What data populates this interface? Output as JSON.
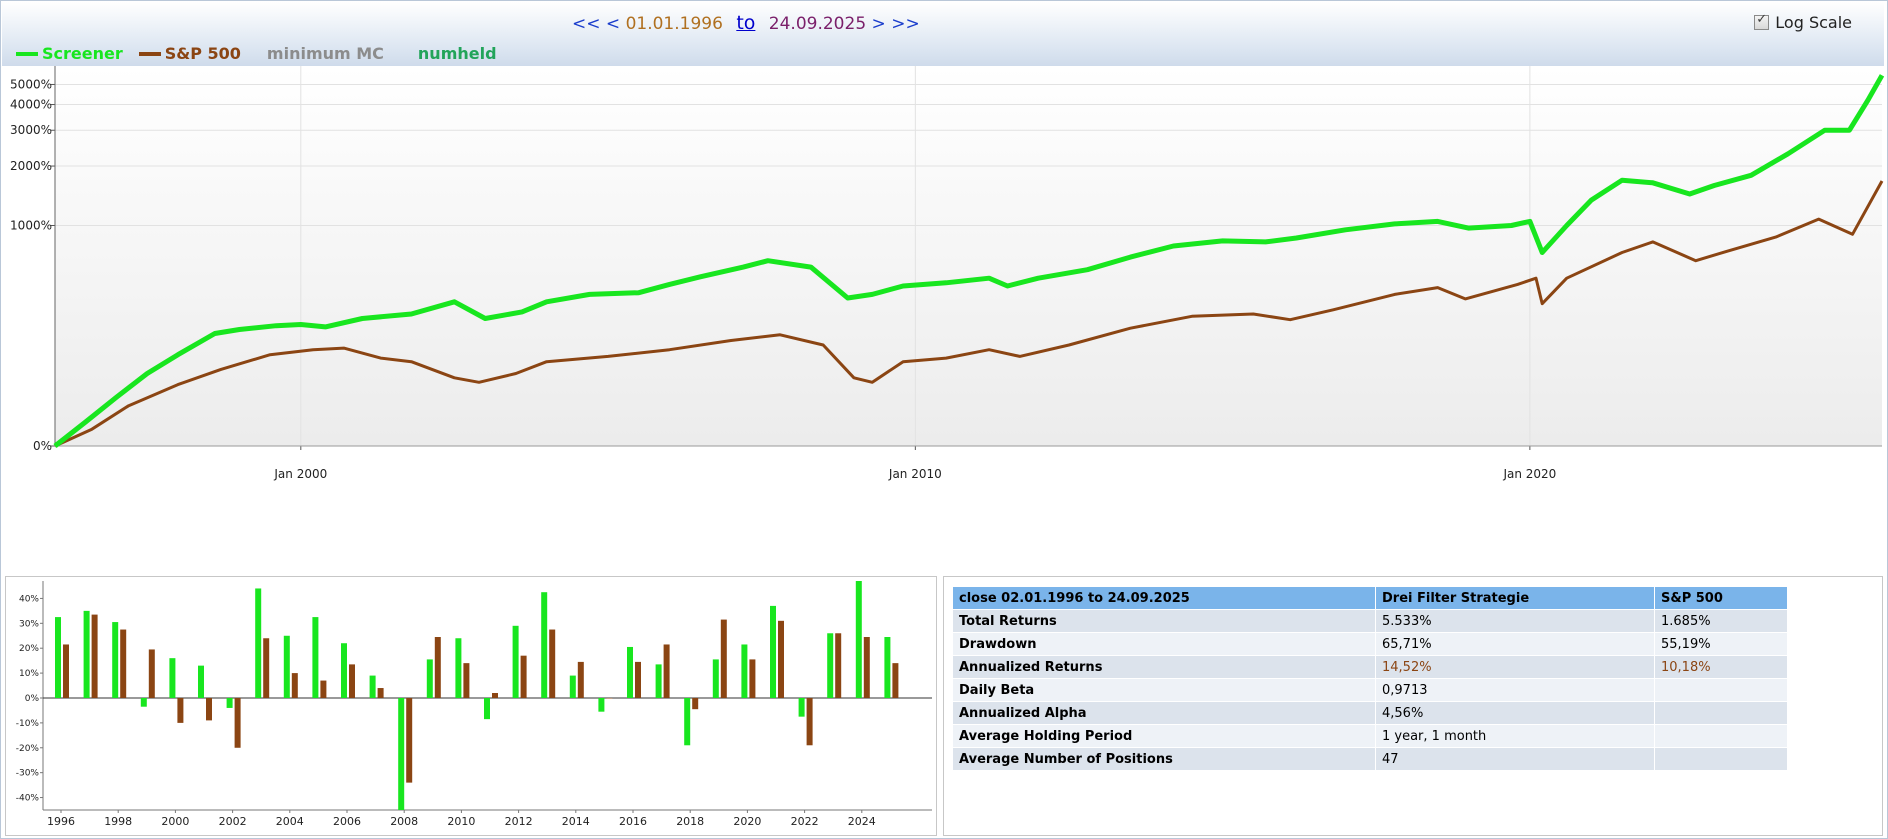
{
  "header": {
    "nav_first": "<<",
    "nav_prev": "<",
    "start_date": "01.01.1996",
    "to_label": "to",
    "end_date": "24.09.2025",
    "nav_next": ">",
    "nav_last": ">>",
    "log_scale_label": "Log Scale",
    "log_scale_checked": true
  },
  "legend": [
    {
      "label": "Screener",
      "color": "#18e61f",
      "swatch": true
    },
    {
      "label": "S&P 500",
      "color": "#8b4513",
      "swatch": true
    },
    {
      "label": "minimum MC",
      "color": "#8c8c8c",
      "swatch": false
    },
    {
      "label": "numheld",
      "color": "#22a45a",
      "swatch": false
    }
  ],
  "chart_data": [
    {
      "type": "line",
      "title": "",
      "xlabel": "",
      "ylabel": "",
      "log_scale": true,
      "x_range": [
        1996.0,
        2025.73
      ],
      "x_ticks": [
        2000,
        2010,
        2020
      ],
      "x_tick_labels": [
        "Jan 2000",
        "Jan 2010",
        "Jan 2020"
      ],
      "y_ticks": [
        0,
        1000,
        2000,
        3000,
        4000,
        5000
      ],
      "y_tick_labels": [
        "0%",
        "1000%",
        "2000%",
        "3000%",
        "4000%",
        "5000%"
      ],
      "ylim": [
        0,
        6000
      ],
      "grid": true,
      "legend_position": "top-left",
      "series": [
        {
          "name": "Screener",
          "color": "#18e61f",
          "points": [
            [
              1996.0,
              0
            ],
            [
              1996.5,
              30
            ],
            [
              1997.0,
              70
            ],
            [
              1997.5,
              120
            ],
            [
              1998.0,
              170
            ],
            [
              1998.6,
              240
            ],
            [
              1999.0,
              255
            ],
            [
              1999.6,
              270
            ],
            [
              2000.0,
              275
            ],
            [
              2000.4,
              265
            ],
            [
              2001.0,
              300
            ],
            [
              2001.8,
              320
            ],
            [
              2002.5,
              380
            ],
            [
              2003.0,
              300
            ],
            [
              2003.6,
              330
            ],
            [
              2004.0,
              380
            ],
            [
              2004.7,
              420
            ],
            [
              2005.5,
              430
            ],
            [
              2006.0,
              480
            ],
            [
              2006.5,
              530
            ],
            [
              2007.2,
              600
            ],
            [
              2007.6,
              650
            ],
            [
              2008.3,
              600
            ],
            [
              2008.9,
              400
            ],
            [
              2009.3,
              420
            ],
            [
              2009.8,
              470
            ],
            [
              2010.5,
              490
            ],
            [
              2011.2,
              520
            ],
            [
              2011.5,
              470
            ],
            [
              2012.0,
              520
            ],
            [
              2012.8,
              580
            ],
            [
              2013.5,
              680
            ],
            [
              2014.2,
              780
            ],
            [
              2015.0,
              830
            ],
            [
              2015.7,
              820
            ],
            [
              2016.2,
              860
            ],
            [
              2017.0,
              950
            ],
            [
              2017.8,
              1020
            ],
            [
              2018.5,
              1050
            ],
            [
              2019.0,
              970
            ],
            [
              2019.7,
              1000
            ],
            [
              2020.0,
              1050
            ],
            [
              2020.2,
              720
            ],
            [
              2020.6,
              1000
            ],
            [
              2021.0,
              1350
            ],
            [
              2021.5,
              1700
            ],
            [
              2022.0,
              1650
            ],
            [
              2022.6,
              1450
            ],
            [
              2023.0,
              1600
            ],
            [
              2023.6,
              1800
            ],
            [
              2024.2,
              2300
            ],
            [
              2024.8,
              3000
            ],
            [
              2025.2,
              3000
            ],
            [
              2025.5,
              4200
            ],
            [
              2025.73,
              5533
            ]
          ]
        },
        {
          "name": "S&P 500",
          "color": "#8b4513",
          "points": [
            [
              1996.0,
              0
            ],
            [
              1996.6,
              20
            ],
            [
              1997.2,
              55
            ],
            [
              1998.0,
              95
            ],
            [
              1998.7,
              130
            ],
            [
              1999.5,
              170
            ],
            [
              2000.2,
              185
            ],
            [
              2000.7,
              190
            ],
            [
              2001.3,
              160
            ],
            [
              2001.8,
              150
            ],
            [
              2002.5,
              110
            ],
            [
              2002.9,
              100
            ],
            [
              2003.5,
              120
            ],
            [
              2004.0,
              150
            ],
            [
              2005.0,
              165
            ],
            [
              2006.0,
              185
            ],
            [
              2007.0,
              215
            ],
            [
              2007.8,
              235
            ],
            [
              2008.5,
              200
            ],
            [
              2009.0,
              110
            ],
            [
              2009.3,
              100
            ],
            [
              2009.8,
              150
            ],
            [
              2010.5,
              160
            ],
            [
              2011.2,
              185
            ],
            [
              2011.7,
              165
            ],
            [
              2012.5,
              200
            ],
            [
              2013.5,
              260
            ],
            [
              2014.5,
              310
            ],
            [
              2015.5,
              320
            ],
            [
              2016.1,
              295
            ],
            [
              2016.8,
              340
            ],
            [
              2017.8,
              420
            ],
            [
              2018.5,
              460
            ],
            [
              2018.95,
              395
            ],
            [
              2019.8,
              480
            ],
            [
              2020.1,
              520
            ],
            [
              2020.2,
              370
            ],
            [
              2020.6,
              520
            ],
            [
              2021.5,
              720
            ],
            [
              2022.0,
              820
            ],
            [
              2022.7,
              650
            ],
            [
              2023.2,
              730
            ],
            [
              2024.0,
              870
            ],
            [
              2024.7,
              1080
            ],
            [
              2025.25,
              900
            ],
            [
              2025.73,
              1685
            ]
          ]
        }
      ]
    },
    {
      "type": "bar",
      "title": "",
      "xlabel": "",
      "ylabel": "",
      "ylim": [
        -45,
        47
      ],
      "y_ticks": [
        -40,
        -30,
        -20,
        -10,
        0,
        10,
        20,
        30,
        40
      ],
      "y_tick_labels": [
        "-40%",
        "-30%",
        "-20%",
        "-10%",
        "0%",
        "10%",
        "20%",
        "30%",
        "40%"
      ],
      "x_tick_labels": [
        "1996",
        "1998",
        "2000",
        "2002",
        "2004",
        "2006",
        "2008",
        "2010",
        "2012",
        "2014",
        "2016",
        "2018",
        "2020",
        "2022",
        "2024"
      ],
      "categories": [
        "1996",
        "1997",
        "1998",
        "1999",
        "2000",
        "2001",
        "2002",
        "2003",
        "2004",
        "2005",
        "2006",
        "2007",
        "2008",
        "2009",
        "2010",
        "2011",
        "2012",
        "2013",
        "2014",
        "2015",
        "2016",
        "2017",
        "2018",
        "2019",
        "2020",
        "2021",
        "2022",
        "2023",
        "2024",
        "2025"
      ],
      "series": [
        {
          "name": "Screener",
          "color": "#18e61f",
          "values": [
            32.5,
            35,
            30.5,
            -3.5,
            16,
            13,
            -4,
            44,
            25,
            32.5,
            22,
            9,
            -45,
            15.5,
            24,
            -8.5,
            29,
            42.5,
            9,
            -5.5,
            20.5,
            13.5,
            -19,
            15.5,
            21.5,
            37,
            -7.5,
            26,
            47,
            24.5
          ]
        },
        {
          "name": "S&P 500",
          "color": "#8b4513",
          "values": [
            21.5,
            33.5,
            27.5,
            19.5,
            -10,
            -9,
            -20,
            24,
            10,
            7,
            13.5,
            4,
            -34,
            24.5,
            14,
            2,
            17,
            27.5,
            14.5,
            0,
            14.5,
            21.5,
            -4.5,
            31.5,
            15.5,
            31,
            -19,
            26,
            24.5,
            14
          ]
        }
      ]
    }
  ],
  "stats_table": {
    "headers": [
      "close 02.01.1996 to 24.09.2025",
      "Drei Filter Strategie",
      "S&P 500"
    ],
    "rows": [
      {
        "label": "Total Returns",
        "strategy": "5.533%",
        "benchmark": "1.685%"
      },
      {
        "label": "Drawdown",
        "strategy": "65,71%",
        "benchmark": "55,19%"
      },
      {
        "label": "Annualized Returns",
        "strategy": "14,52%",
        "benchmark": "10,18%",
        "highlight_color": "#8b4513"
      },
      {
        "label": "Daily Beta",
        "strategy": "0,9713",
        "benchmark": ""
      },
      {
        "label": "Annualized Alpha",
        "strategy": "4,56%",
        "benchmark": ""
      },
      {
        "label": "Average Holding Period",
        "strategy": "1 year, 1 month",
        "benchmark": ""
      },
      {
        "label": "Average Number of Positions",
        "strategy": "47",
        "benchmark": ""
      }
    ]
  }
}
